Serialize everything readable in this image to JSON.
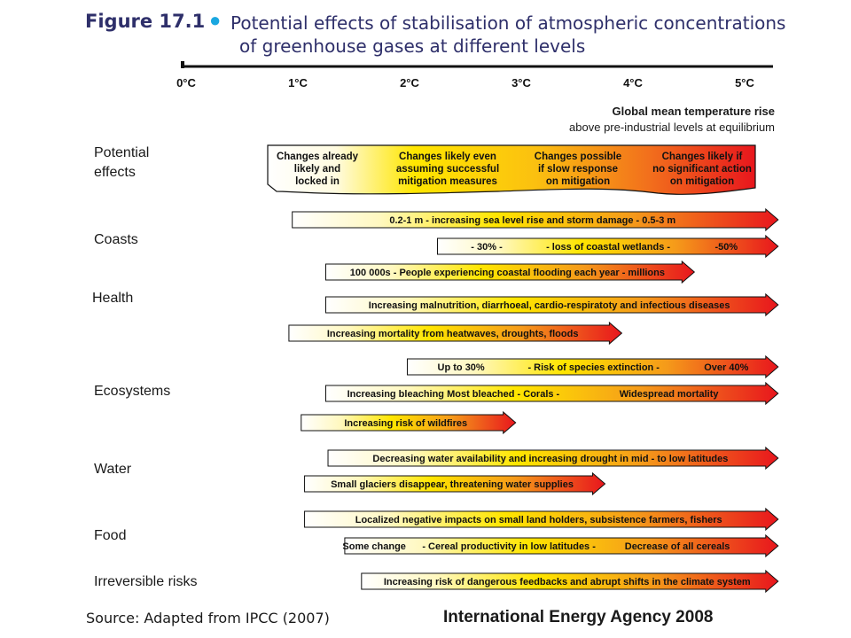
{
  "figure": {
    "number": "Figure 17.1",
    "title_line1": "Potential effects of stabilisation of atmospheric concentrations",
    "title_line2": "of greenhouse gases at different levels"
  },
  "axis": {
    "ticks": [
      "0°C",
      "1°C",
      "2°C",
      "3°C",
      "4°C",
      "5°C"
    ],
    "title_line1": "Global mean temperature rise",
    "title_line2": "above pre-industrial levels at equilibrium"
  },
  "row_labels": {
    "potential_effects_1": "Potential",
    "potential_effects_2": "effects",
    "coasts": "Coasts",
    "health": "Health",
    "ecosystems": "Ecosystems",
    "water": "Water",
    "food": "Food",
    "irreversible": "Irreversible risks"
  },
  "legend_band": {
    "sections": [
      [
        "Changes already",
        "likely and",
        "locked in"
      ],
      [
        "Changes likely even",
        "assuming successful",
        "mitigation measures"
      ],
      [
        "Changes possible",
        "if slow response",
        "on mitigation"
      ],
      [
        "Changes likely if",
        "no significant action",
        "on mitigation"
      ]
    ]
  },
  "arrows": [
    {
      "id": "sea-level-arrow",
      "start": 0.95,
      "end": 5.3,
      "texts": [
        "0.2-1 m - increasing sea level rise and storm damage - 0.5-3 m"
      ]
    },
    {
      "id": "wetlands-arrow",
      "start": 2.25,
      "end": 5.3,
      "texts": [
        "- 30% -",
        "- loss of coastal wetlands -",
        "-50%"
      ]
    },
    {
      "id": "coastal-flooding-arrow",
      "start": 1.25,
      "end": 4.55,
      "texts": [
        "100 000s - People experiencing coastal flooding each year - millions"
      ]
    },
    {
      "id": "malnutrition-arrow",
      "start": 1.25,
      "end": 5.3,
      "texts": [
        "Increasing malnutrition, diarrhoeal, cardio-respiratoty and infectious diseases"
      ]
    },
    {
      "id": "heatwaves-arrow",
      "start": 0.92,
      "end": 3.9,
      "texts": [
        "Increasing mortality from heatwaves, droughts, floods"
      ]
    },
    {
      "id": "species-extinction-arrow",
      "start": 1.98,
      "end": 5.3,
      "texts": [
        "Up to 30%",
        "- Risk of species extinction -",
        "Over 40%"
      ]
    },
    {
      "id": "corals-arrow",
      "start": 1.25,
      "end": 5.3,
      "texts": [
        "Increasing bleaching Most bleached  - Corals -",
        "Widespread mortality"
      ]
    },
    {
      "id": "wildfires-arrow",
      "start": 1.03,
      "end": 2.95,
      "texts": [
        "Increasing risk of wildfires"
      ]
    },
    {
      "id": "water-availability-arrow",
      "start": 1.27,
      "end": 5.3,
      "texts": [
        "Decreasing water availability and increasing drought in mid - to low latitudes"
      ]
    },
    {
      "id": "glaciers-arrow",
      "start": 1.06,
      "end": 3.75,
      "texts": [
        "Small glaciers disappear, threatening water supplies"
      ]
    },
    {
      "id": "localized-impacts-arrow",
      "start": 1.06,
      "end": 5.3,
      "texts": [
        "Localized negative impacts on small land holders, subsistence farmers, fishers"
      ]
    },
    {
      "id": "cereal-arrow",
      "start": 1.42,
      "end": 5.3,
      "texts": [
        "Some change",
        "- Cereal productivity in low latitudes -",
        "Decrease of all cereals"
      ]
    },
    {
      "id": "feedbacks-arrow",
      "start": 1.57,
      "end": 5.3,
      "texts": [
        "Increasing risk of dangerous feedbacks and abrupt shifts in the climate system"
      ]
    }
  ],
  "colors": {
    "title": "#2e2f6a",
    "bullet": "#1aa7e0",
    "gradient": [
      "#ffffff",
      "#ffe600",
      "#f59a1a",
      "#e8161d"
    ]
  },
  "footer": {
    "source": "Source: Adapted from IPCC (2007)",
    "agency": "International Energy Agency 2008"
  }
}
